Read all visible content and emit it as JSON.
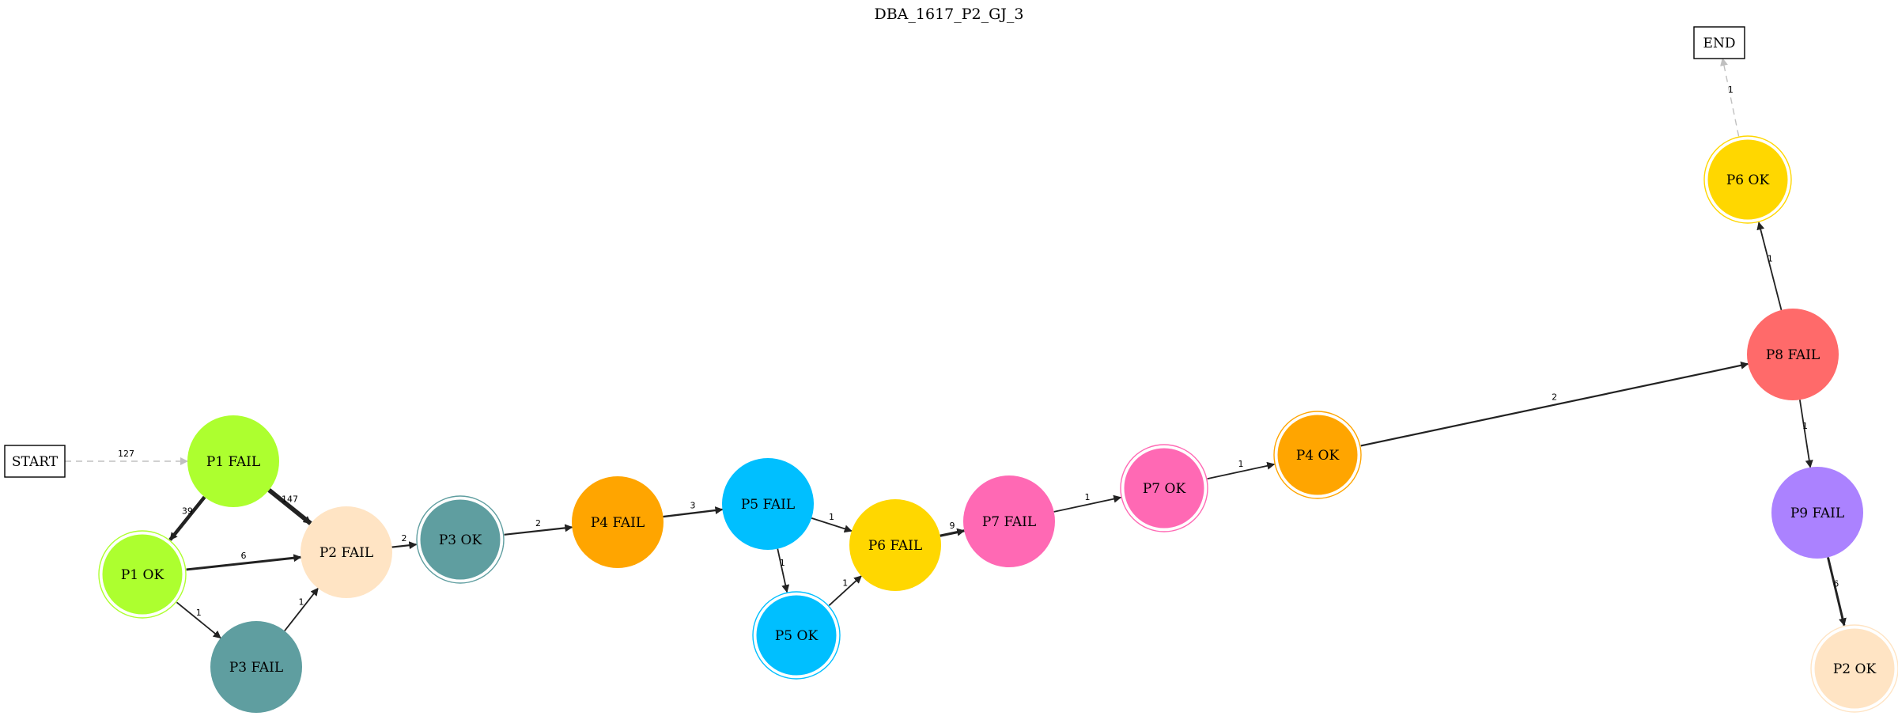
{
  "title": "DBA_1617_P2_GJ_3",
  "nodes": {
    "start": {
      "label": "START"
    },
    "end": {
      "label": "END"
    },
    "p1fail": {
      "label": "P1 FAIL",
      "color": "#adff2f"
    },
    "p1ok": {
      "label": "P1 OK",
      "color": "#adff2f"
    },
    "p2fail": {
      "label": "P2 FAIL",
      "color": "#ffe4c4"
    },
    "p3fail": {
      "label": "P3 FAIL",
      "color": "#5f9ea0"
    },
    "p3ok": {
      "label": "P3 OK",
      "color": "#5f9ea0"
    },
    "p4fail": {
      "label": "P4 FAIL",
      "color": "#ffa500"
    },
    "p5fail": {
      "label": "P5 FAIL",
      "color": "#00bfff"
    },
    "p5ok": {
      "label": "P5 OK",
      "color": "#00bfff"
    },
    "p6fail": {
      "label": "P6 FAIL",
      "color": "#ffd700"
    },
    "p7fail": {
      "label": "P7 FAIL",
      "color": "#ff69b4"
    },
    "p7ok": {
      "label": "P7 OK",
      "color": "#ff69b4"
    },
    "p4ok": {
      "label": "P4 OK",
      "color": "#ffa500"
    },
    "p8fail": {
      "label": "P8 FAIL",
      "color": "#ff6a6a"
    },
    "p6ok": {
      "label": "P6 OK",
      "color": "#ffd700"
    },
    "p9fail": {
      "label": "P9 FAIL",
      "color": "#ab82ff"
    },
    "p2ok": {
      "label": "P2 OK",
      "color": "#ffe4c4"
    }
  },
  "edges": [
    {
      "from": "start",
      "to": "p1fail",
      "label": "127"
    },
    {
      "from": "p1fail",
      "to": "p1ok",
      "label": "39"
    },
    {
      "from": "p1fail",
      "to": "p2fail",
      "label": "147"
    },
    {
      "from": "p1ok",
      "to": "p2fail",
      "label": "6"
    },
    {
      "from": "p1ok",
      "to": "p3fail",
      "label": "1"
    },
    {
      "from": "p3fail",
      "to": "p2fail",
      "label": "1"
    },
    {
      "from": "p2fail",
      "to": "p3ok",
      "label": "2"
    },
    {
      "from": "p3ok",
      "to": "p4fail",
      "label": "2"
    },
    {
      "from": "p4fail",
      "to": "p5fail",
      "label": "3"
    },
    {
      "from": "p5fail",
      "to": "p6fail",
      "label": "1"
    },
    {
      "from": "p5fail",
      "to": "p5ok",
      "label": "1"
    },
    {
      "from": "p5ok",
      "to": "p6fail",
      "label": "1"
    },
    {
      "from": "p6fail",
      "to": "p7fail",
      "label": "9"
    },
    {
      "from": "p7fail",
      "to": "p7ok",
      "label": "1"
    },
    {
      "from": "p7ok",
      "to": "p4ok",
      "label": "1"
    },
    {
      "from": "p4ok",
      "to": "p8fail",
      "label": "2"
    },
    {
      "from": "p8fail",
      "to": "p6ok",
      "label": "1"
    },
    {
      "from": "p8fail",
      "to": "p9fail",
      "label": "1"
    },
    {
      "from": "p9fail",
      "to": "p2ok",
      "label": "6"
    },
    {
      "from": "p6ok",
      "to": "end",
      "label": "1"
    }
  ]
}
